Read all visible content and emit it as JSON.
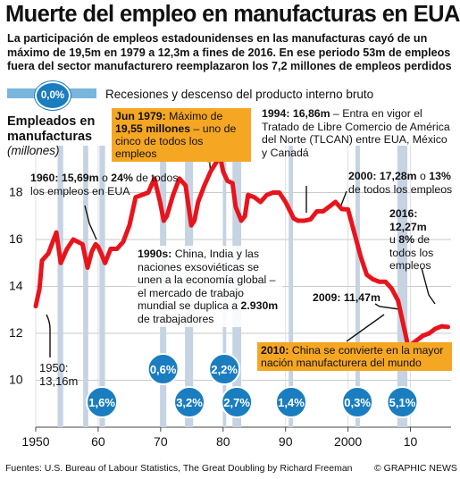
{
  "header": {
    "title": "Muerte del empleo en manufacturas en EUA",
    "subtitle": "La participación de empleos estadounidenses en las manufacturas cayó de un máximo de 19,5m en 1979 a 12,3m a fines de 2016. En ese periodo 53m de empleos fuera del sector manufacturero reemplazaron los 7,2 millones de empleos perdidos"
  },
  "legend": {
    "circle_label": "0,0%",
    "text": "Recesiones y descenso del producto interno bruto"
  },
  "axis": {
    "ylabel": "Empleados en manufacturas",
    "yunits": "(millones)"
  },
  "annotations": {
    "a1950_year": "1950:",
    "a1950_value": "13,16m",
    "a1960_bold": "1960: 15,69m",
    "a1960_mid": " o ",
    "a1960_pct": "24%",
    "a1960_rest": " de todos los empleos en EUA",
    "a1979_head": "Jun 1979:",
    "a1979_head_rest": " Máximo de",
    "a1979_bold": "19,55 millones",
    "a1979_rest": " – uno de cinco de todos los empleos",
    "a1994_bold": "1994: 16,86m",
    "a1994_rest": " – Entra en vigor el Tratado de Libre Comercio de América del Norte (TLCAN) entre EUA, México y Canadá",
    "a2000_bold": "2000: 17,28m",
    "a2000_mid": " o ",
    "a2000_pct": "13%",
    "a2000_rest": " de todos los empleos",
    "a2016_year": "2016:",
    "a2016_value": "12,27m",
    "a2016_rest1": "u ",
    "a2016_pct": "8%",
    "a2016_rest2": " de todos los empleos",
    "a1990s_bold": "1990s:",
    "a1990s_rest": " China, India y las naciones exsoviéticas se unen a la economía global – el mercado de trabajo mundial se duplica a ",
    "a1990s_num": "2.930m",
    "a1990s_end": " de trabajadores",
    "a2009": "2009: 11,47m",
    "a2010_bold": "2010:",
    "a2010_rest": " China se convierte en la mayor nación manufacturera del mundo"
  },
  "footer": {
    "source": "Fuentes: U.S. Bureau of Labour Statistics, The Great Doubling by Richard Freeman",
    "credit": "© GRAPHIC NEWS"
  },
  "colors": {
    "line": "#e8141c",
    "recession_fill": "#c5d3e3",
    "recession_label": "#1a7dbf",
    "highlight_box": "#f5a623",
    "legend_bar": "#7ab5dd"
  },
  "chart_data": {
    "type": "line",
    "xlim": [
      1950,
      2016.5
    ],
    "ylim": [
      8,
      20
    ],
    "x_ticks": [
      1950,
      1960,
      1970,
      1980,
      1990,
      2000,
      2010
    ],
    "x_tick_labels": [
      "1950",
      "60",
      "70",
      "80",
      "90",
      "2000",
      "10"
    ],
    "y_ticks": [
      10,
      12,
      14,
      16,
      18
    ],
    "series": [
      {
        "x": [
          1950,
          1950.6,
          1951,
          1952,
          1953.3,
          1954,
          1955,
          1956,
          1957.5,
          1958.3,
          1959,
          1959.6,
          1960,
          1960.5,
          1961.1,
          1962,
          1963,
          1964,
          1965,
          1966,
          1967,
          1968,
          1969,
          1969.9,
          1970.5,
          1971,
          1972,
          1973,
          1974,
          1974.9,
          1975.4,
          1976,
          1977,
          1978,
          1979.5,
          1980,
          1980.7,
          1981.5,
          1982,
          1982.9,
          1983.5,
          1984,
          1985,
          1986,
          1987,
          1988,
          1989,
          1990,
          1991.3,
          1992,
          1993,
          1994,
          1995,
          1996,
          1997,
          1998,
          1999,
          2000,
          2001,
          2002,
          2003,
          2004,
          2005,
          2006,
          2007,
          2008,
          2009.6,
          2010,
          2011,
          2012,
          2013,
          2014,
          2015,
          2016
        ],
        "y": [
          13.16,
          13.9,
          15.1,
          15.4,
          16.3,
          15.0,
          15.6,
          16.0,
          15.8,
          14.8,
          15.5,
          15.8,
          15.69,
          15.4,
          15.0,
          15.6,
          15.6,
          15.9,
          16.6,
          17.8,
          17.9,
          18.0,
          18.6,
          17.6,
          16.8,
          17.0,
          17.9,
          18.6,
          18.3,
          16.6,
          16.8,
          17.6,
          18.3,
          18.9,
          19.55,
          18.9,
          18.5,
          18.4,
          17.4,
          16.8,
          17.0,
          17.9,
          17.8,
          17.6,
          17.9,
          18.0,
          18.0,
          17.6,
          16.9,
          16.8,
          16.8,
          16.86,
          17.2,
          17.2,
          17.4,
          17.6,
          17.3,
          17.28,
          16.3,
          15.3,
          14.5,
          14.3,
          14.2,
          14.2,
          13.9,
          13.4,
          11.47,
          11.5,
          11.7,
          11.9,
          12.0,
          12.2,
          12.3,
          12.27
        ]
      }
    ],
    "recessions": [
      {
        "start": 1953.5,
        "end": 1954.4,
        "label": "",
        "label_year": 1953.9,
        "label_row": 1
      },
      {
        "start": 1957.6,
        "end": 1958.4,
        "label": "",
        "label_year": 1958.0,
        "label_row": 1
      },
      {
        "start": 1960.2,
        "end": 1961.1,
        "label": "1,6%",
        "label_year": 1960.6,
        "label_row": 2
      },
      {
        "start": 1969.9,
        "end": 1970.9,
        "label": "0,6%",
        "label_year": 1970.4,
        "label_row": 1
      },
      {
        "start": 1973.9,
        "end": 1975.2,
        "label": "3,2%",
        "label_year": 1974.6,
        "label_row": 2
      },
      {
        "start": 1980.0,
        "end": 1980.5,
        "label": "2,2%",
        "label_year": 1980.2,
        "label_row": 1
      },
      {
        "start": 1981.5,
        "end": 1982.9,
        "label": "2,7%",
        "label_year": 1982.2,
        "label_row": 2
      },
      {
        "start": 1990.5,
        "end": 1991.2,
        "label": "1,4%",
        "label_year": 1990.9,
        "label_row": 2
      },
      {
        "start": 2001.2,
        "end": 2001.9,
        "label": "0,3%",
        "label_year": 2001.5,
        "label_row": 2
      },
      {
        "start": 2007.9,
        "end": 2009.5,
        "label": "5,1%",
        "label_year": 2008.7,
        "label_row": 2
      }
    ],
    "grid": true
  }
}
